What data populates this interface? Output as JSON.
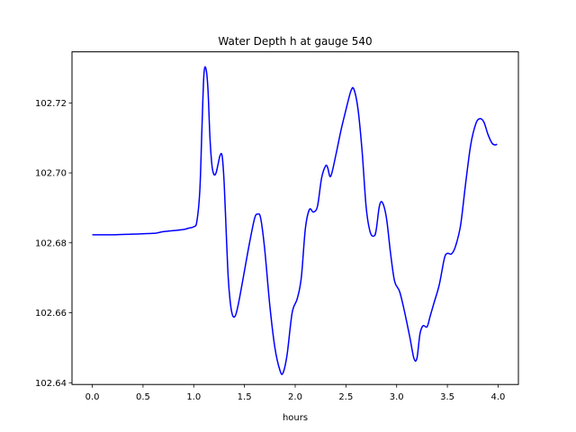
{
  "chart_data": {
    "type": "line",
    "title": "Water Depth h at gauge 540",
    "xlabel": "hours",
    "ylabel": "",
    "xlim": [
      -0.2,
      4.2
    ],
    "ylim": [
      102.6395,
      102.7346
    ],
    "xticks": [
      0.0,
      0.5,
      1.0,
      1.5,
      2.0,
      2.5,
      3.0,
      3.5,
      4.0
    ],
    "xtick_labels": [
      "0.0",
      "0.5",
      "1.0",
      "1.5",
      "2.0",
      "2.5",
      "3.0",
      "3.5",
      "4.0"
    ],
    "yticks": [
      102.64,
      102.66,
      102.68,
      102.7,
      102.72
    ],
    "ytick_labels": [
      "102.64",
      "102.66",
      "102.68",
      "102.70",
      "102.72"
    ],
    "grid": false,
    "line_color": "#0000ff",
    "series": [
      {
        "name": "",
        "x": [
          0.0,
          0.2,
          0.4,
          0.6,
          0.65,
          0.7,
          0.8,
          0.9,
          0.95,
          1.0,
          1.03,
          1.06,
          1.08,
          1.1,
          1.12,
          1.14,
          1.16,
          1.18,
          1.2,
          1.22,
          1.24,
          1.26,
          1.28,
          1.3,
          1.32,
          1.34,
          1.36,
          1.38,
          1.4,
          1.42,
          1.45,
          1.5,
          1.55,
          1.6,
          1.63,
          1.66,
          1.7,
          1.75,
          1.8,
          1.85,
          1.88,
          1.92,
          1.97,
          2.02,
          2.06,
          2.1,
          2.14,
          2.18,
          2.22,
          2.26,
          2.3,
          2.32,
          2.35,
          2.4,
          2.45,
          2.5,
          2.55,
          2.58,
          2.62,
          2.66,
          2.7,
          2.74,
          2.78,
          2.8,
          2.83,
          2.86,
          2.9,
          2.94,
          2.98,
          3.03,
          3.08,
          3.13,
          3.17,
          3.2,
          3.23,
          3.26,
          3.3,
          3.33,
          3.37,
          3.42,
          3.47,
          3.5,
          3.54,
          3.58,
          3.63,
          3.68,
          3.73,
          3.78,
          3.82,
          3.86,
          3.9,
          3.94,
          3.97,
          3.99
        ],
        "y": [
          102.6823,
          102.6823,
          102.6825,
          102.6827,
          102.6829,
          102.6832,
          102.6835,
          102.6838,
          102.6842,
          102.6846,
          102.686,
          102.695,
          102.712,
          102.728,
          102.7298,
          102.724,
          102.71,
          102.702,
          102.6995,
          102.7,
          102.7025,
          102.705,
          102.7048,
          102.697,
          102.683,
          102.67,
          102.663,
          102.6595,
          102.6588,
          102.66,
          102.664,
          102.672,
          102.68,
          102.687,
          102.6882,
          102.687,
          102.678,
          102.662,
          102.65,
          102.6435,
          102.6428,
          102.648,
          102.66,
          102.664,
          102.67,
          102.684,
          102.6895,
          102.6888,
          102.6905,
          102.6985,
          102.702,
          102.7015,
          102.699,
          102.705,
          102.712,
          102.718,
          102.7235,
          102.7238,
          102.718,
          102.706,
          102.69,
          102.683,
          102.682,
          102.684,
          102.6905,
          102.6915,
          102.687,
          102.677,
          102.669,
          102.666,
          102.66,
          102.653,
          102.647,
          102.647,
          102.654,
          102.6563,
          102.656,
          102.659,
          102.663,
          102.668,
          102.6755,
          102.677,
          102.6768,
          102.679,
          102.685,
          102.697,
          102.708,
          102.714,
          102.7155,
          102.7145,
          102.711,
          102.7085,
          102.708,
          102.7082
        ]
      }
    ]
  }
}
